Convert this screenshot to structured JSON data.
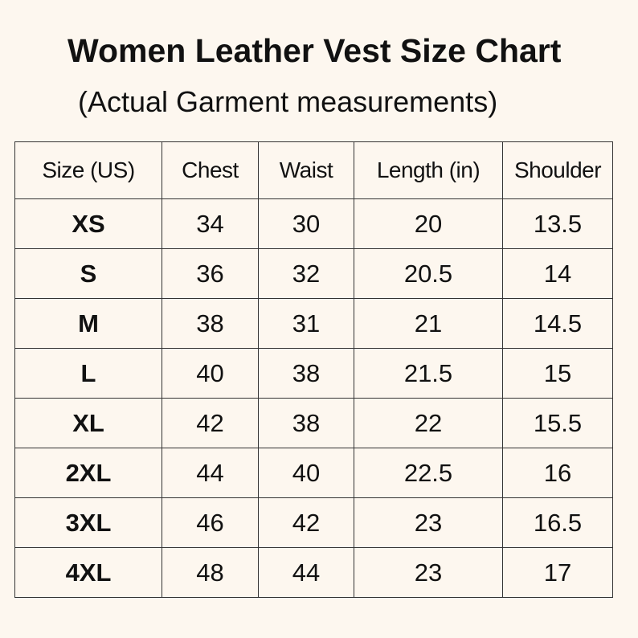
{
  "header": {
    "title": "Women Leather Vest Size Chart",
    "subtitle": "(Actual Garment measurements)"
  },
  "table": {
    "columns": [
      "Size (US)",
      "Chest",
      "Waist",
      "Length (in)",
      "Shoulder"
    ],
    "rows": [
      [
        "XS",
        "34",
        "30",
        "20",
        "13.5"
      ],
      [
        "S",
        "36",
        "32",
        "20.5",
        "14"
      ],
      [
        "M",
        "38",
        "31",
        "21",
        "14.5"
      ],
      [
        "L",
        "40",
        "38",
        "21.5",
        "15"
      ],
      [
        "XL",
        "42",
        "38",
        "22",
        "15.5"
      ],
      [
        "2XL",
        "44",
        "40",
        "22.5",
        "16"
      ],
      [
        "3XL",
        "46",
        "42",
        "23",
        "16.5"
      ],
      [
        "4XL",
        "48",
        "44",
        "23",
        "17"
      ]
    ]
  }
}
